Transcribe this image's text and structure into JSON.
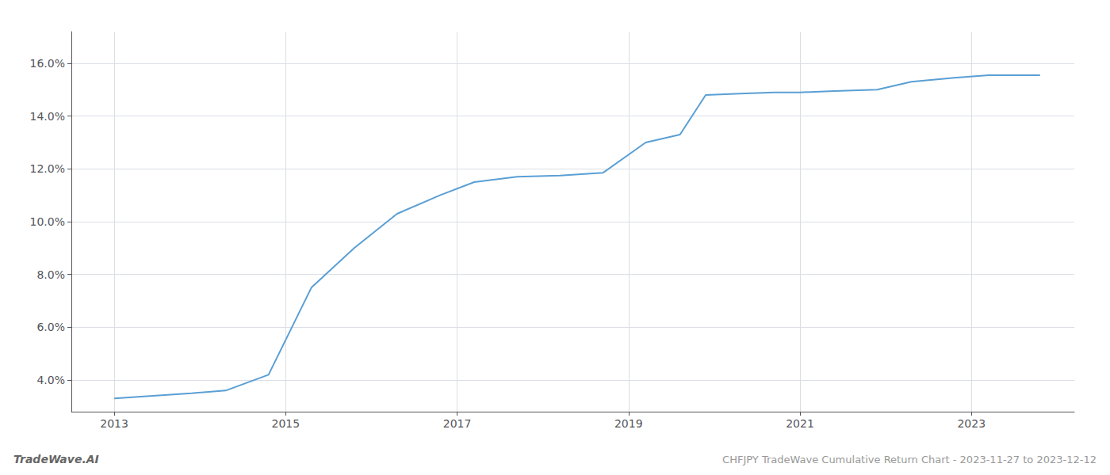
{
  "chart_data": {
    "type": "line",
    "title": "CHFJPY TradeWave Cumulative Return Chart - 2023-11-27 to 2023-12-12",
    "annotations": [
      "TradeWave.AI"
    ],
    "x": [
      2013.0,
      2013.9,
      2014.3,
      2014.8,
      2015.3,
      2015.8,
      2016.3,
      2016.8,
      2017.2,
      2017.7,
      2018.2,
      2018.7,
      2019.2,
      2019.6,
      2019.9,
      2020.3,
      2020.7,
      2021.0,
      2021.4,
      2021.9,
      2022.3,
      2022.8,
      2023.2,
      2023.8
    ],
    "values": [
      3.3,
      3.5,
      3.6,
      4.2,
      7.5,
      9.0,
      10.3,
      11.0,
      11.5,
      11.7,
      11.75,
      11.85,
      13.0,
      13.3,
      14.8,
      14.85,
      14.9,
      14.9,
      14.95,
      15.0,
      15.3,
      15.45,
      15.55,
      15.55
    ],
    "color": "#5a9fd4",
    "xlim": [
      2012.5,
      2024.2
    ],
    "ylim": [
      2.8,
      17.2
    ],
    "xticks": [
      2013,
      2015,
      2017,
      2019,
      2021,
      2023
    ],
    "yticks": [
      {
        "value": 4.0,
        "label": "4.0%"
      },
      {
        "value": 6.0,
        "label": "6.0%"
      },
      {
        "value": 8.0,
        "label": "8.0%"
      },
      {
        "value": 10.0,
        "label": "10.0%"
      },
      {
        "value": 12.0,
        "label": "12.0%"
      },
      {
        "value": 14.0,
        "label": "14.0%"
      },
      {
        "value": 16.0,
        "label": "16.0%"
      }
    ],
    "grid": true
  }
}
